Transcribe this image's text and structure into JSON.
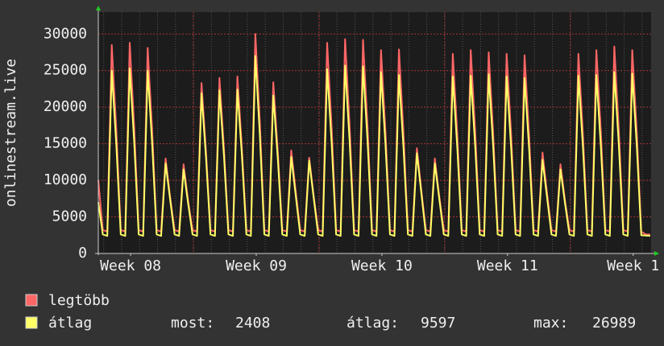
{
  "chart_data": {
    "type": "line",
    "y_label": "onlinestream.live",
    "xlim": [
      0,
      30.8
    ],
    "xticks": [
      {
        "value": 1.8,
        "label": "Week 08"
      },
      {
        "value": 8.8,
        "label": "Week 09"
      },
      {
        "value": 15.8,
        "label": "Week 10"
      },
      {
        "value": 22.8,
        "label": "Week 11"
      },
      {
        "value": 29.8,
        "label": "Week 1"
      }
    ],
    "xgrid": [
      5.3,
      12.3,
      19.3,
      26.3
    ],
    "ylim": [
      0,
      33000
    ],
    "yticks": [
      0,
      5000,
      10000,
      15000,
      20000,
      25000,
      30000
    ],
    "grid": true,
    "x": [
      0,
      0.25,
      0.5,
      0.75,
      1,
      1.25,
      1.5,
      1.75,
      2,
      2.25,
      2.5,
      2.75,
      3,
      3.25,
      3.5,
      3.75,
      4,
      4.25,
      4.5,
      4.75,
      5,
      5.25,
      5.5,
      5.75,
      6,
      6.25,
      6.5,
      6.75,
      7,
      7.25,
      7.5,
      7.75,
      8,
      8.25,
      8.5,
      8.75,
      9,
      9.25,
      9.5,
      9.75,
      10,
      10.25,
      10.5,
      10.75,
      11,
      11.25,
      11.5,
      11.75,
      12,
      12.25,
      12.5,
      12.75,
      13,
      13.25,
      13.5,
      13.75,
      14,
      14.25,
      14.5,
      14.75,
      15,
      15.25,
      15.5,
      15.75,
      16,
      16.25,
      16.5,
      16.75,
      17,
      17.25,
      17.5,
      17.75,
      18,
      18.25,
      18.5,
      18.75,
      19,
      19.25,
      19.5,
      19.75,
      20,
      20.25,
      20.5,
      20.75,
      21,
      21.25,
      21.5,
      21.75,
      22,
      22.25,
      22.5,
      22.75,
      23,
      23.25,
      23.5,
      23.75,
      24,
      24.25,
      24.5,
      24.75,
      25,
      25.25,
      25.5,
      25.75,
      26,
      26.25,
      26.5,
      26.75,
      27,
      27.25,
      27.5,
      27.75,
      28,
      28.25,
      28.5,
      28.75,
      29,
      29.25,
      29.5,
      29.75,
      30,
      30.25,
      30.5,
      30.75
    ],
    "series": [
      {
        "name": "legtöbb",
        "color": "#ff6666",
        "values": [
          10000,
          3200,
          3000,
          28500,
          17100,
          3200,
          3000,
          28800,
          17300,
          3200,
          3000,
          28100,
          16900,
          3200,
          3000,
          13000,
          7800,
          3200,
          3000,
          12200,
          7300,
          3200,
          3000,
          23300,
          14000,
          3200,
          3000,
          24000,
          14400,
          3200,
          3000,
          24200,
          14500,
          3200,
          3000,
          30000,
          18000,
          3200,
          3000,
          23400,
          14000,
          3200,
          3000,
          14100,
          8500,
          3200,
          3000,
          13100,
          7900,
          3200,
          3000,
          28800,
          17300,
          3200,
          3000,
          29300,
          17600,
          3200,
          3000,
          29200,
          17500,
          3200,
          3000,
          27800,
          16700,
          3200,
          3000,
          27900,
          16700,
          3200,
          3000,
          14400,
          8600,
          3200,
          3000,
          13000,
          7800,
          3200,
          3000,
          27300,
          16400,
          3200,
          3000,
          27800,
          16700,
          3200,
          3000,
          27500,
          16500,
          3200,
          3000,
          27300,
          16400,
          3200,
          3000,
          27100,
          16300,
          3200,
          3000,
          13800,
          8300,
          3200,
          3000,
          12200,
          7300,
          3200,
          3000,
          27300,
          16400,
          3200,
          3000,
          27800,
          16700,
          3200,
          3000,
          28300,
          17000,
          3200,
          3000,
          27800,
          16700,
          3000,
          2600,
          2600
        ]
      },
      {
        "name": "átlag",
        "color": "#ffff66",
        "values": [
          7000,
          2600,
          2400,
          25000,
          15000,
          2600,
          2400,
          25300,
          15200,
          2600,
          2400,
          25000,
          15000,
          2600,
          2400,
          12300,
          7400,
          2600,
          2400,
          11500,
          6900,
          2600,
          2400,
          21900,
          13100,
          2600,
          2400,
          22300,
          13400,
          2600,
          2400,
          22400,
          13400,
          2600,
          2400,
          27000,
          16200,
          2600,
          2400,
          21600,
          13000,
          2600,
          2400,
          13200,
          7900,
          2600,
          2400,
          12700,
          7600,
          2600,
          2400,
          25200,
          15100,
          2600,
          2400,
          25700,
          15400,
          2600,
          2400,
          25600,
          15400,
          2600,
          2400,
          24800,
          14900,
          2600,
          2400,
          24400,
          14600,
          2600,
          2400,
          13700,
          8200,
          2600,
          2400,
          12300,
          7400,
          2600,
          2400,
          24200,
          14500,
          2600,
          2400,
          24300,
          14600,
          2600,
          2400,
          24500,
          14700,
          2600,
          2400,
          24200,
          14500,
          2600,
          2400,
          24000,
          14400,
          2600,
          2400,
          12800,
          7700,
          2600,
          2400,
          11500,
          6900,
          2600,
          2400,
          24300,
          14600,
          2600,
          2400,
          24400,
          14600,
          2600,
          2400,
          24800,
          14900,
          2600,
          2400,
          24600,
          14800,
          2500,
          2450,
          2408
        ]
      }
    ],
    "stats": [
      {
        "label": "most:",
        "value": 2408
      },
      {
        "label": "átlag:",
        "value": 9597
      },
      {
        "label": "max:",
        "value": 26989
      }
    ]
  }
}
